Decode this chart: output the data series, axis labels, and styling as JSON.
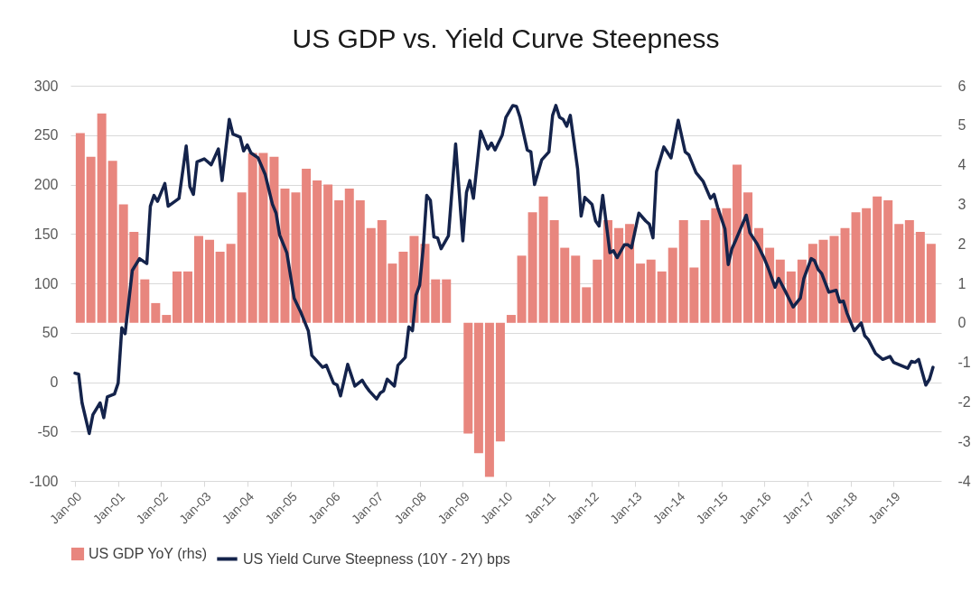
{
  "chart_data": {
    "type": "bar",
    "title": "US GDP vs. Yield Curve Steepness",
    "xlim": [
      "2000-01",
      "2020-01"
    ],
    "xticks": [
      {
        "value": "2000-01",
        "label": "Jan-00"
      },
      {
        "value": "2001-01",
        "label": "Jan-01"
      },
      {
        "value": "2002-01",
        "label": "Jan-02"
      },
      {
        "value": "2003-01",
        "label": "Jan-03"
      },
      {
        "value": "2004-01",
        "label": "Jan-04"
      },
      {
        "value": "2005-01",
        "label": "Jan-05"
      },
      {
        "value": "2006-01",
        "label": "Jan-06"
      },
      {
        "value": "2007-01",
        "label": "Jan-07"
      },
      {
        "value": "2008-01",
        "label": "Jan-08"
      },
      {
        "value": "2009-01",
        "label": "Jan-09"
      },
      {
        "value": "2010-01",
        "label": "Jan-10"
      },
      {
        "value": "2011-01",
        "label": "Jan-11"
      },
      {
        "value": "2012-01",
        "label": "Jan-12"
      },
      {
        "value": "2013-01",
        "label": "Jan-13"
      },
      {
        "value": "2014-01",
        "label": "Jan-14"
      },
      {
        "value": "2015-01",
        "label": "Jan-15"
      },
      {
        "value": "2016-01",
        "label": "Jan-16"
      },
      {
        "value": "2017-01",
        "label": "Jan-17"
      },
      {
        "value": "2018-01",
        "label": "Jan-18"
      },
      {
        "value": "2019-01",
        "label": "Jan-19"
      }
    ],
    "ylim": [
      -100,
      300
    ],
    "yticks": [
      -100,
      -50,
      0,
      50,
      100,
      150,
      200,
      250,
      300
    ],
    "y2lim": [
      -4,
      6
    ],
    "y2ticks": [
      -4,
      -3,
      -2,
      -1,
      0,
      1,
      2,
      3,
      4,
      5,
      6
    ],
    "grid": "y",
    "legend": "bottom",
    "series": [
      {
        "name": "US GDP YoY (rhs)",
        "axis": "y2",
        "color": "#e8867e",
        "x": [
          "2000-02-15",
          "2000-05-15",
          "2000-08-15",
          "2000-11-15",
          "2001-02-15",
          "2001-05-15",
          "2001-08-15",
          "2001-11-15",
          "2002-02-15",
          "2002-05-15",
          "2002-08-15",
          "2002-11-15",
          "2003-02-15",
          "2003-05-15",
          "2003-08-15",
          "2003-11-15",
          "2004-02-15",
          "2004-05-15",
          "2004-08-15",
          "2004-11-15",
          "2005-02-15",
          "2005-05-15",
          "2005-08-15",
          "2005-11-15",
          "2006-02-15",
          "2006-05-15",
          "2006-08-15",
          "2006-11-15",
          "2007-02-15",
          "2007-05-15",
          "2007-08-15",
          "2007-11-15",
          "2008-02-15",
          "2008-05-15",
          "2008-08-15",
          "2008-11-15",
          "2009-02-15",
          "2009-05-15",
          "2009-08-15",
          "2009-11-15",
          "2010-02-15",
          "2010-05-15",
          "2010-08-15",
          "2010-11-15",
          "2011-02-15",
          "2011-05-15",
          "2011-08-15",
          "2011-11-15",
          "2012-02-15",
          "2012-05-15",
          "2012-08-15",
          "2012-11-15",
          "2013-02-15",
          "2013-05-15",
          "2013-08-15",
          "2013-11-15",
          "2014-02-15",
          "2014-05-15",
          "2014-08-15",
          "2014-11-15",
          "2015-02-15",
          "2015-05-15",
          "2015-08-15",
          "2015-11-15",
          "2016-02-15",
          "2016-05-15",
          "2016-08-15",
          "2016-11-15",
          "2017-02-15",
          "2017-05-15",
          "2017-08-15",
          "2017-11-15",
          "2018-02-15",
          "2018-05-15",
          "2018-08-15",
          "2018-11-15",
          "2019-02-15",
          "2019-05-15",
          "2019-08-15",
          "2019-11-15"
        ],
        "values": [
          4.8,
          4.2,
          5.3,
          4.1,
          3.0,
          2.3,
          1.1,
          0.5,
          0.2,
          1.3,
          1.3,
          2.2,
          2.1,
          1.8,
          2.0,
          3.3,
          4.3,
          4.3,
          4.2,
          3.4,
          3.3,
          3.9,
          3.6,
          3.5,
          3.1,
          3.4,
          3.1,
          2.4,
          2.6,
          1.5,
          1.8,
          2.2,
          2.0,
          1.1,
          1.1,
          0,
          -2.8,
          -3.3,
          -3.9,
          -3.0,
          0.2,
          1.7,
          2.8,
          3.2,
          2.6,
          1.9,
          1.7,
          0.9,
          1.6,
          2.6,
          2.4,
          2.5,
          1.5,
          1.6,
          1.3,
          1.9,
          2.6,
          1.4,
          2.6,
          2.9,
          2.9,
          4.0,
          3.3,
          2.4,
          1.9,
          1.6,
          1.3,
          1.6,
          2.0,
          2.1,
          2.2,
          2.4,
          2.8,
          2.9,
          3.2,
          3.1,
          2.5,
          2.6,
          2.3,
          2.0
        ]
      },
      {
        "name": "US Yield Curve Steepness (10Y - 2Y) bps",
        "type": "line",
        "color": "#14234b",
        "x": [
          "2000-01",
          "2000-02",
          "2000-03",
          "2000-05",
          "2000-06",
          "2000-08",
          "2000-09",
          "2000-10",
          "2000-12",
          "2001-01",
          "2001-02",
          "2001-03",
          "2001-05",
          "2001-07",
          "2001-09",
          "2001-10",
          "2001-11",
          "2001-12",
          "2002-02",
          "2002-03",
          "2002-06",
          "2002-08",
          "2002-09",
          "2002-10",
          "2002-11",
          "2003-01",
          "2003-03",
          "2003-05",
          "2003-06",
          "2003-08",
          "2003-09",
          "2003-11",
          "2003-12",
          "2004-01",
          "2004-02",
          "2004-04",
          "2004-06",
          "2004-08",
          "2004-09",
          "2004-10",
          "2004-12",
          "2005-02",
          "2005-04",
          "2005-06",
          "2005-07",
          "2005-10",
          "2005-11",
          "2006-01",
          "2006-02",
          "2006-03",
          "2006-05",
          "2006-07",
          "2006-09",
          "2006-10",
          "2006-11",
          "2007-01",
          "2007-02",
          "2007-03",
          "2007-04",
          "2007-06",
          "2007-07",
          "2007-09",
          "2007-10",
          "2007-11",
          "2007-12",
          "2008-01",
          "2008-02",
          "2008-03",
          "2008-04",
          "2008-05",
          "2008-06",
          "2008-07",
          "2008-09",
          "2008-11",
          "2009-01",
          "2009-02",
          "2009-03",
          "2009-04",
          "2009-06",
          "2009-08",
          "2009-09",
          "2009-10",
          "2009-12",
          "2010-01",
          "2010-03",
          "2010-04",
          "2010-05",
          "2010-07",
          "2010-08",
          "2010-09",
          "2010-11",
          "2011-01",
          "2011-02",
          "2011-03",
          "2011-04",
          "2011-05",
          "2011-06",
          "2011-07",
          "2011-09",
          "2011-10",
          "2011-11",
          "2012-01",
          "2012-02",
          "2012-03",
          "2012-04",
          "2012-06",
          "2012-07",
          "2012-08",
          "2012-10",
          "2012-11",
          "2012-12",
          "2013-02",
          "2013-04",
          "2013-05",
          "2013-06",
          "2013-07",
          "2013-09",
          "2013-11",
          "2014-01",
          "2014-03",
          "2014-04",
          "2014-06",
          "2014-08",
          "2014-10",
          "2014-11",
          "2014-12",
          "2015-02",
          "2015-03",
          "2015-04",
          "2015-05",
          "2015-08",
          "2015-09",
          "2015-11",
          "2016-01",
          "2016-02",
          "2016-04",
          "2016-05",
          "2016-07",
          "2016-09",
          "2016-11",
          "2016-12",
          "2017-02",
          "2017-03",
          "2017-04",
          "2017-05",
          "2017-07",
          "2017-09",
          "2017-10",
          "2017-11",
          "2017-12",
          "2018-02",
          "2018-04",
          "2018-05",
          "2018-06",
          "2018-08",
          "2018-10",
          "2018-12",
          "2019-01",
          "2019-03",
          "2019-05",
          "2019-06",
          "2019-07",
          "2019-08",
          "2019-10",
          "2019-11",
          "2019-12"
        ],
        "values": [
          9,
          8,
          -21,
          -52,
          -33,
          -21,
          -36,
          -15,
          -12,
          -1,
          55,
          49,
          113,
          125,
          120,
          178,
          189,
          183,
          201,
          178,
          186,
          239,
          198,
          190,
          223,
          226,
          220,
          236,
          204,
          266,
          251,
          248,
          234,
          240,
          232,
          227,
          210,
          180,
          171,
          149,
          131,
          85,
          70,
          52,
          27,
          15,
          17,
          -1,
          -3,
          -14,
          18,
          -4,
          2,
          -4,
          -9,
          -17,
          -11,
          -9,
          3,
          -4,
          17,
          25,
          56,
          52,
          88,
          98,
          137,
          189,
          184,
          147,
          146,
          135,
          148,
          241,
          143,
          192,
          204,
          186,
          254,
          236,
          242,
          235,
          250,
          268,
          280,
          279,
          268,
          235,
          233,
          200,
          225,
          233,
          270,
          280,
          268,
          266,
          259,
          270,
          216,
          168,
          187,
          180,
          163,
          158,
          189,
          131,
          133,
          126,
          139,
          139,
          136,
          171,
          163,
          160,
          146,
          213,
          238,
          227,
          265,
          233,
          230,
          212,
          203,
          186,
          190,
          177,
          155,
          119,
          135,
          143,
          169,
          151,
          140,
          125,
          116,
          96,
          105,
          91,
          76,
          85,
          105,
          125,
          123,
          114,
          110,
          91,
          93,
          81,
          82,
          70,
          52,
          60,
          47,
          43,
          29,
          23,
          26,
          20,
          17,
          14,
          21,
          20,
          23,
          -3,
          3,
          15
        ]
      }
    ]
  }
}
